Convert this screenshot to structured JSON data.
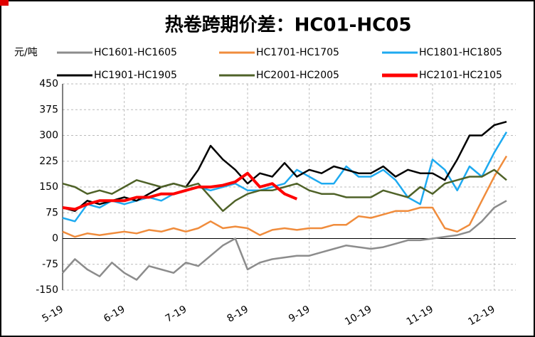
{
  "chart_data": {
    "type": "line",
    "title": "热卷跨期价差：HC01-HC05",
    "y_label": "元/吨",
    "x": [
      0,
      0.2,
      0.4,
      0.6,
      0.8,
      1.0,
      1.2,
      1.4,
      1.6,
      1.8,
      2.0,
      2.2,
      2.4,
      2.6,
      2.8,
      3.0,
      3.2,
      3.4,
      3.6,
      3.8,
      4.0,
      4.2,
      4.4,
      4.6,
      4.8,
      5.0,
      5.2,
      5.4,
      5.6,
      5.8,
      6.0,
      6.2,
      6.4,
      6.6,
      6.8,
      7.0,
      7.2
    ],
    "xlim": [
      0,
      7.35
    ],
    "xticks": [
      {
        "value": 0,
        "label": "5-19"
      },
      {
        "value": 1,
        "label": "6-19"
      },
      {
        "value": 2,
        "label": "7-19"
      },
      {
        "value": 3,
        "label": "8-19"
      },
      {
        "value": 4,
        "label": "9-19"
      },
      {
        "value": 5,
        "label": "10-19"
      },
      {
        "value": 6,
        "label": "11-19"
      },
      {
        "value": 7,
        "label": "12-19"
      }
    ],
    "ylim": [
      -150,
      450
    ],
    "yticks": [
      -150,
      -75,
      0,
      75,
      150,
      225,
      300,
      375,
      450
    ],
    "grid": true,
    "series": [
      {
        "name": "HC1601-HC1605",
        "color": "#8c8c8c",
        "values": [
          -100,
          -60,
          -90,
          -110,
          -70,
          -100,
          -120,
          -80,
          -90,
          -100,
          -70,
          -80,
          -50,
          -20,
          0,
          -90,
          -70,
          -60,
          -55,
          -50,
          -50,
          -40,
          -30,
          -20,
          -25,
          -30,
          -25,
          -15,
          -5,
          -5,
          0,
          5,
          10,
          20,
          50,
          90,
          110
        ]
      },
      {
        "name": "HC1701-HC1705",
        "color": "#f08c3c",
        "values": [
          20,
          5,
          15,
          10,
          15,
          20,
          15,
          25,
          20,
          30,
          20,
          30,
          50,
          30,
          35,
          30,
          10,
          25,
          30,
          25,
          30,
          30,
          40,
          40,
          65,
          60,
          70,
          80,
          80,
          90,
          90,
          30,
          20,
          40,
          110,
          180,
          240
        ]
      },
      {
        "name": "HC1801-HC1805",
        "color": "#1eaaf0",
        "values": [
          60,
          50,
          100,
          90,
          110,
          100,
          110,
          120,
          110,
          130,
          140,
          150,
          140,
          150,
          160,
          140,
          140,
          150,
          160,
          200,
          180,
          160,
          160,
          210,
          180,
          180,
          200,
          170,
          120,
          100,
          230,
          200,
          140,
          210,
          180,
          250,
          310
        ]
      },
      {
        "name": "HC1901-HC1905",
        "color": "#000000",
        "values": [
          90,
          80,
          110,
          100,
          110,
          120,
          110,
          130,
          150,
          160,
          150,
          200,
          270,
          230,
          200,
          160,
          190,
          180,
          220,
          180,
          200,
          190,
          210,
          200,
          190,
          190,
          210,
          180,
          200,
          190,
          190,
          170,
          230,
          300,
          300,
          330,
          340
        ]
      },
      {
        "name": "HC2001-HC2005",
        "color": "#4f6228",
        "values": [
          160,
          150,
          130,
          140,
          130,
          150,
          170,
          160,
          150,
          160,
          150,
          160,
          120,
          80,
          110,
          130,
          140,
          140,
          150,
          160,
          140,
          130,
          130,
          120,
          120,
          120,
          140,
          130,
          120,
          150,
          130,
          160,
          170,
          180,
          180,
          200,
          170
        ]
      },
      {
        "name": "HC2101-HC2105",
        "color": "#ff0000",
        "values": [
          90,
          85,
          100,
          110,
          110,
          110,
          120,
          120,
          130,
          130,
          140,
          150,
          150,
          155,
          165,
          190,
          150,
          160,
          130,
          115,
          null,
          null,
          null,
          null,
          null,
          null,
          null,
          null,
          null,
          null,
          null,
          null,
          null,
          null,
          null,
          null,
          null
        ]
      }
    ]
  }
}
